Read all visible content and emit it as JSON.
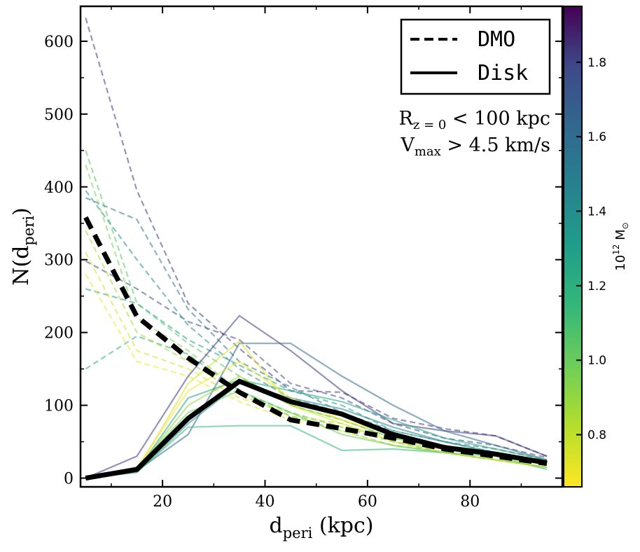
{
  "chart_data": {
    "type": "line",
    "title": "",
    "xlabel": "d",
    "xlabel_sub": "peri",
    "xlabel_suffix": " (kpc)",
    "ylabel": "N(d",
    "ylabel_sub": "peri",
    "ylabel_suffix": ")",
    "xlim": [
      4,
      98
    ],
    "ylim": [
      -12,
      648
    ],
    "xticks": [
      20,
      40,
      60,
      80
    ],
    "yticks": [
      0,
      100,
      200,
      300,
      400,
      500,
      600
    ],
    "x": [
      5,
      15,
      25,
      35,
      45,
      55,
      65,
      75,
      85,
      95
    ],
    "legend": {
      "position": "top-right",
      "entries": [
        {
          "label": "DMO",
          "style": "dashed"
        },
        {
          "label": "Disk",
          "style": "solid"
        }
      ]
    },
    "annotations": [
      {
        "main": "R",
        "sub": "z = 0",
        "rest": " < 100 kpc"
      },
      {
        "main": "V",
        "sub": "max",
        "rest": " > 4.5 km/s"
      }
    ],
    "colorbar": {
      "label": "10",
      "label_sup": "12",
      "label_rest": "  M",
      "label_symbol": "⊙",
      "range": [
        0.66,
        1.95
      ],
      "ticks": [
        "0.8",
        "1.0",
        "1.2",
        "1.4",
        "1.6",
        "1.8"
      ],
      "colormap": "viridis"
    },
    "mean_series": [
      {
        "name": "DMO mean",
        "style": "dashed",
        "values": [
          358,
          222,
          165,
          118,
          80,
          68,
          55,
          40,
          30,
          20
        ]
      },
      {
        "name": "Disk mean",
        "style": "solid",
        "values": [
          0,
          12,
          82,
          133,
          105,
          88,
          60,
          42,
          33,
          21
        ]
      }
    ],
    "series": [
      {
        "style": "dashed",
        "mass": 1.82,
        "values": [
          632,
          395,
          240,
          178,
          120,
          118,
          82,
          68,
          58,
          30
        ]
      },
      {
        "style": "dashed",
        "mass": 1.78,
        "values": [
          298,
          260,
          215,
          190,
          130,
          110,
          75,
          55,
          45,
          28
        ]
      },
      {
        "style": "dashed",
        "mass": 1.55,
        "values": [
          385,
          355,
          232,
          160,
          125,
          90,
          65,
          50,
          40,
          25
        ]
      },
      {
        "style": "dashed",
        "mass": 1.4,
        "values": [
          395,
          300,
          210,
          150,
          110,
          90,
          60,
          45,
          30,
          20
        ]
      },
      {
        "style": "dashed",
        "mass": 1.3,
        "values": [
          260,
          240,
          190,
          155,
          120,
          100,
          65,
          50,
          35,
          22
        ]
      },
      {
        "style": "dashed",
        "mass": 1.2,
        "values": [
          150,
          195,
          170,
          120,
          90,
          70,
          50,
          35,
          25,
          15
        ]
      },
      {
        "style": "dashed",
        "mass": 1.05,
        "values": [
          450,
          240,
          185,
          140,
          100,
          80,
          55,
          40,
          30,
          18
        ]
      },
      {
        "style": "dashed",
        "mass": 0.95,
        "values": [
          430,
          220,
          175,
          120,
          85,
          65,
          45,
          35,
          25,
          15
        ]
      },
      {
        "style": "dashed",
        "mass": 0.85,
        "values": [
          340,
          200,
          160,
          115,
          85,
          75,
          50,
          40,
          30,
          20
        ]
      },
      {
        "style": "dashed",
        "mass": 0.75,
        "values": [
          310,
          175,
          150,
          110,
          90,
          70,
          55,
          40,
          30,
          18
        ]
      },
      {
        "style": "dashed",
        "mass": 0.7,
        "values": [
          280,
          160,
          140,
          105,
          80,
          65,
          45,
          35,
          25,
          15
        ]
      },
      {
        "style": "solid",
        "mass": 1.82,
        "values": [
          0,
          30,
          140,
          223,
          175,
          120,
          75,
          65,
          58,
          30
        ]
      },
      {
        "style": "solid",
        "mass": 1.6,
        "values": [
          0,
          10,
          60,
          185,
          185,
          140,
          100,
          65,
          45,
          25
        ]
      },
      {
        "style": "solid",
        "mass": 1.45,
        "values": [
          0,
          8,
          75,
          130,
          110,
          95,
          70,
          50,
          35,
          20
        ]
      },
      {
        "style": "solid",
        "mass": 1.25,
        "values": [
          0,
          10,
          110,
          135,
          120,
          105,
          80,
          55,
          40,
          25
        ]
      },
      {
        "style": "solid",
        "mass": 1.15,
        "values": [
          0,
          8,
          70,
          72,
          72,
          38,
          40,
          35,
          30,
          12
        ]
      },
      {
        "style": "solid",
        "mass": 1.0,
        "values": [
          0,
          15,
          90,
          120,
          90,
          60,
          45,
          35,
          25,
          15
        ]
      },
      {
        "style": "solid",
        "mass": 0.9,
        "values": [
          0,
          12,
          100,
          140,
          100,
          80,
          55,
          40,
          30,
          20
        ]
      },
      {
        "style": "solid",
        "mass": 0.75,
        "values": [
          0,
          10,
          130,
          188,
          100,
          75,
          50,
          35,
          25,
          15
        ]
      },
      {
        "style": "solid",
        "mass": 0.68,
        "values": [
          0,
          15,
          120,
          160,
          110,
          80,
          60,
          45,
          30,
          18
        ]
      }
    ]
  }
}
